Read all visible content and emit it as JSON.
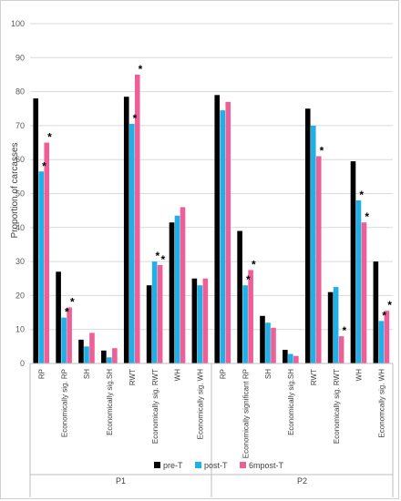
{
  "chart_data": {
    "type": "bar",
    "ylabel": "Proportion of carcasses",
    "ylim": [
      0,
      100
    ],
    "yticks": [
      0,
      10,
      20,
      30,
      40,
      50,
      60,
      70,
      80,
      90,
      100
    ],
    "grid": true,
    "legend_position": "bottom",
    "groups": [
      {
        "name": "P1",
        "categories": [
          "RP",
          "Economically sig. RP",
          "SH",
          "Economically sig.SH",
          "RWT",
          "Economically sig. RWT",
          "WH",
          "Economically sig. WH"
        ]
      },
      {
        "name": "P2",
        "categories": [
          "RP",
          "Economically significant RP",
          "SH",
          "Economically sig.SH",
          "RWT",
          "Economically sig. RWT",
          "WH",
          "Economcally sig. WH"
        ]
      }
    ],
    "series": [
      {
        "name": "pre-T",
        "color": "#000000",
        "values": [
          78,
          27,
          7,
          3.8,
          78.5,
          23,
          41.5,
          25,
          79,
          39,
          14,
          4,
          75,
          21,
          59.5,
          30
        ]
      },
      {
        "name": "post-T",
        "color": "#1fb0e8",
        "values": [
          56.5,
          13.5,
          5,
          1.8,
          70.5,
          30,
          43.5,
          23,
          74.5,
          23,
          12,
          2.8,
          70,
          22.5,
          48,
          12.5
        ]
      },
      {
        "name": "6mpost-T",
        "color": "#ee5f97",
        "values": [
          65,
          16.5,
          9,
          4.5,
          85,
          29,
          46,
          25,
          77,
          27.5,
          10.5,
          2.2,
          61,
          8,
          41.5,
          15.5
        ]
      }
    ],
    "annotations": {
      "symbol": "*",
      "marks": [
        {
          "category_index": 0,
          "series_index": 1
        },
        {
          "category_index": 0,
          "series_index": 2
        },
        {
          "category_index": 1,
          "series_index": 1
        },
        {
          "category_index": 1,
          "series_index": 2
        },
        {
          "category_index": 4,
          "series_index": 1
        },
        {
          "category_index": 4,
          "series_index": 2
        },
        {
          "category_index": 5,
          "series_index": 1
        },
        {
          "category_index": 5,
          "series_index": 2
        },
        {
          "category_index": 9,
          "series_index": 1
        },
        {
          "category_index": 9,
          "series_index": 2
        },
        {
          "category_index": 12,
          "series_index": 2
        },
        {
          "category_index": 13,
          "series_index": 2
        },
        {
          "category_index": 14,
          "series_index": 1
        },
        {
          "category_index": 14,
          "series_index": 2
        },
        {
          "category_index": 15,
          "series_index": 1
        },
        {
          "category_index": 15,
          "series_index": 2
        }
      ]
    }
  }
}
